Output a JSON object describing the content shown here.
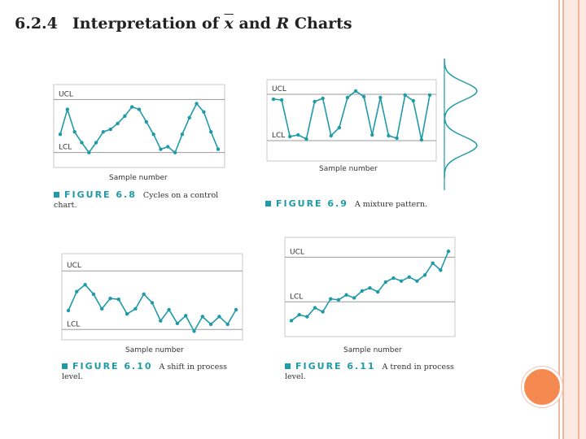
{
  "slide": {
    "section_number": "6.2.4",
    "title_pre": "Interpretation of ",
    "title_xbar": "x",
    "title_and": " and ",
    "title_r": "R",
    "title_post": " Charts",
    "accent_color": "#1f9aa7",
    "decor_color": "#f58a50"
  },
  "figures": [
    {
      "id": "fig-6-8",
      "label": "FIGURE 6.8",
      "caption": "Cycles on a control chart.",
      "xlabel": "Sample number",
      "ucl_label": "UCL",
      "lcl_label": "LCL",
      "chart_data": {
        "type": "line",
        "xlabel": "Sample number",
        "ylim": [
          0,
          1
        ],
        "ucl": 0.82,
        "lcl": 0.18,
        "y": [
          0.4,
          0.7,
          0.43,
          0.3,
          0.18,
          0.3,
          0.43,
          0.46,
          0.53,
          0.62,
          0.73,
          0.7,
          0.55,
          0.4,
          0.22,
          0.25,
          0.18,
          0.4,
          0.6,
          0.77,
          0.67,
          0.43,
          0.22
        ]
      }
    },
    {
      "id": "fig-6-9",
      "label": "FIGURE 6.9",
      "caption": "A mixture pattern.",
      "xlabel": "Sample number",
      "ucl_label": "UCL",
      "lcl_label": "LCL",
      "chart_data": {
        "type": "line",
        "xlabel": "Sample number",
        "ylim": [
          0,
          1
        ],
        "ucl": 0.82,
        "lcl": 0.25,
        "y": [
          0.76,
          0.75,
          0.3,
          0.32,
          0.27,
          0.73,
          0.77,
          0.31,
          0.41,
          0.78,
          0.86,
          0.79,
          0.32,
          0.78,
          0.31,
          0.28,
          0.81,
          0.74,
          0.26,
          0.81
        ]
      }
    },
    {
      "id": "fig-6-10",
      "label": "FIGURE 6.10",
      "caption": "A shift in process level.",
      "xlabel": "Sample number",
      "ucl_label": "UCL",
      "lcl_label": "LCL",
      "chart_data": {
        "type": "line",
        "xlabel": "Sample number",
        "ylim": [
          0,
          1
        ],
        "ucl": 0.8,
        "lcl": 0.12,
        "y": [
          0.34,
          0.56,
          0.64,
          0.53,
          0.36,
          0.48,
          0.47,
          0.3,
          0.36,
          0.53,
          0.43,
          0.22,
          0.35,
          0.19,
          0.28,
          0.1,
          0.27,
          0.18,
          0.27,
          0.18,
          0.35
        ]
      }
    },
    {
      "id": "fig-6-11",
      "label": "FIGURE 6.11",
      "caption": "A trend in process level.",
      "xlabel": "Sample number",
      "ucl_label": "UCL",
      "lcl_label": "LCL",
      "chart_data": {
        "type": "line",
        "xlabel": "Sample number",
        "ylim": [
          0,
          1
        ],
        "ucl": 0.8,
        "lcl": 0.35,
        "y": [
          0.16,
          0.22,
          0.2,
          0.29,
          0.25,
          0.38,
          0.37,
          0.42,
          0.39,
          0.46,
          0.49,
          0.45,
          0.55,
          0.59,
          0.56,
          0.6,
          0.56,
          0.62,
          0.74,
          0.67,
          0.86
        ]
      }
    }
  ]
}
